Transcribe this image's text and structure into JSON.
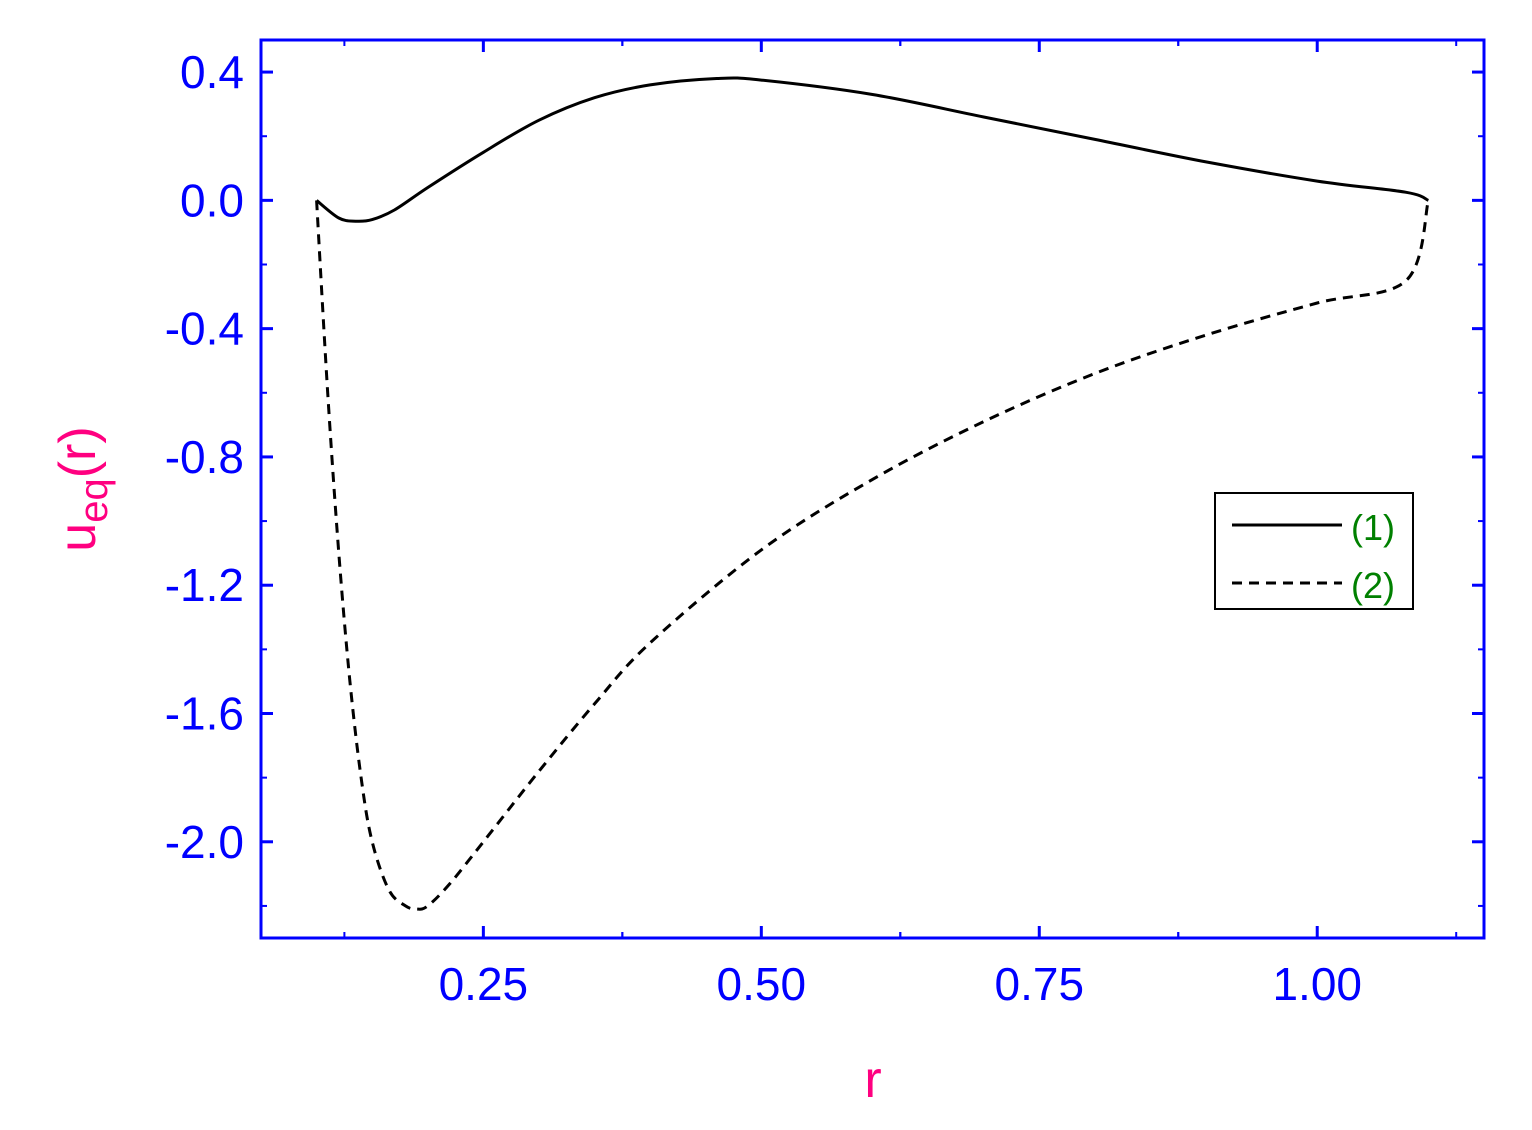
{
  "chart_data": {
    "type": "line",
    "title": "",
    "xlabel": "r",
    "ylabel_main": "u",
    "ylabel_sub": "eq",
    "ylabel_suffix": "(r)",
    "xlim": [
      0.05,
      1.15
    ],
    "ylim": [
      -2.3,
      0.5
    ],
    "x_ticks": [
      0.25,
      0.5,
      0.75,
      1.0
    ],
    "x_tick_labels": [
      "0.25",
      "0.50",
      "0.75",
      "1.00"
    ],
    "y_ticks": [
      0.4,
      0.0,
      -0.4,
      -0.8,
      -1.2,
      -1.6,
      -2.0
    ],
    "y_tick_labels": [
      "0.4",
      "0.0",
      "-0.4",
      "-0.8",
      "-1.2",
      "-1.6",
      "-2.0"
    ],
    "grid": false,
    "legend_position": "right",
    "colors": {
      "axis": "#0000ff",
      "labels": "#ff0080",
      "legend_text": "#008000",
      "series": "#000000"
    },
    "series": [
      {
        "name": "(1)",
        "style": "solid",
        "x": [
          0.1,
          0.12,
          0.135,
          0.15,
          0.17,
          0.2,
          0.25,
          0.3,
          0.35,
          0.4,
          0.46,
          0.5,
          0.6,
          0.7,
          0.8,
          0.9,
          1.0,
          1.08,
          1.1
        ],
        "y": [
          0.0,
          -0.055,
          -0.065,
          -0.06,
          -0.03,
          0.04,
          0.15,
          0.25,
          0.32,
          0.36,
          0.38,
          0.375,
          0.33,
          0.26,
          0.19,
          0.12,
          0.06,
          0.025,
          0.0
        ]
      },
      {
        "name": "(2)",
        "style": "dashed",
        "x": [
          0.1,
          0.11,
          0.12,
          0.13,
          0.14,
          0.15,
          0.165,
          0.18,
          0.19,
          0.2,
          0.22,
          0.25,
          0.3,
          0.35,
          0.4,
          0.5,
          0.6,
          0.7,
          0.8,
          0.9,
          1.0,
          1.08,
          1.1
        ],
        "y": [
          0.0,
          -0.6,
          -1.1,
          -1.5,
          -1.8,
          -2.0,
          -2.15,
          -2.2,
          -2.21,
          -2.2,
          -2.13,
          -2.0,
          -1.78,
          -1.57,
          -1.38,
          -1.09,
          -0.87,
          -0.69,
          -0.54,
          -0.42,
          -0.32,
          -0.25,
          0.0
        ]
      }
    ]
  }
}
